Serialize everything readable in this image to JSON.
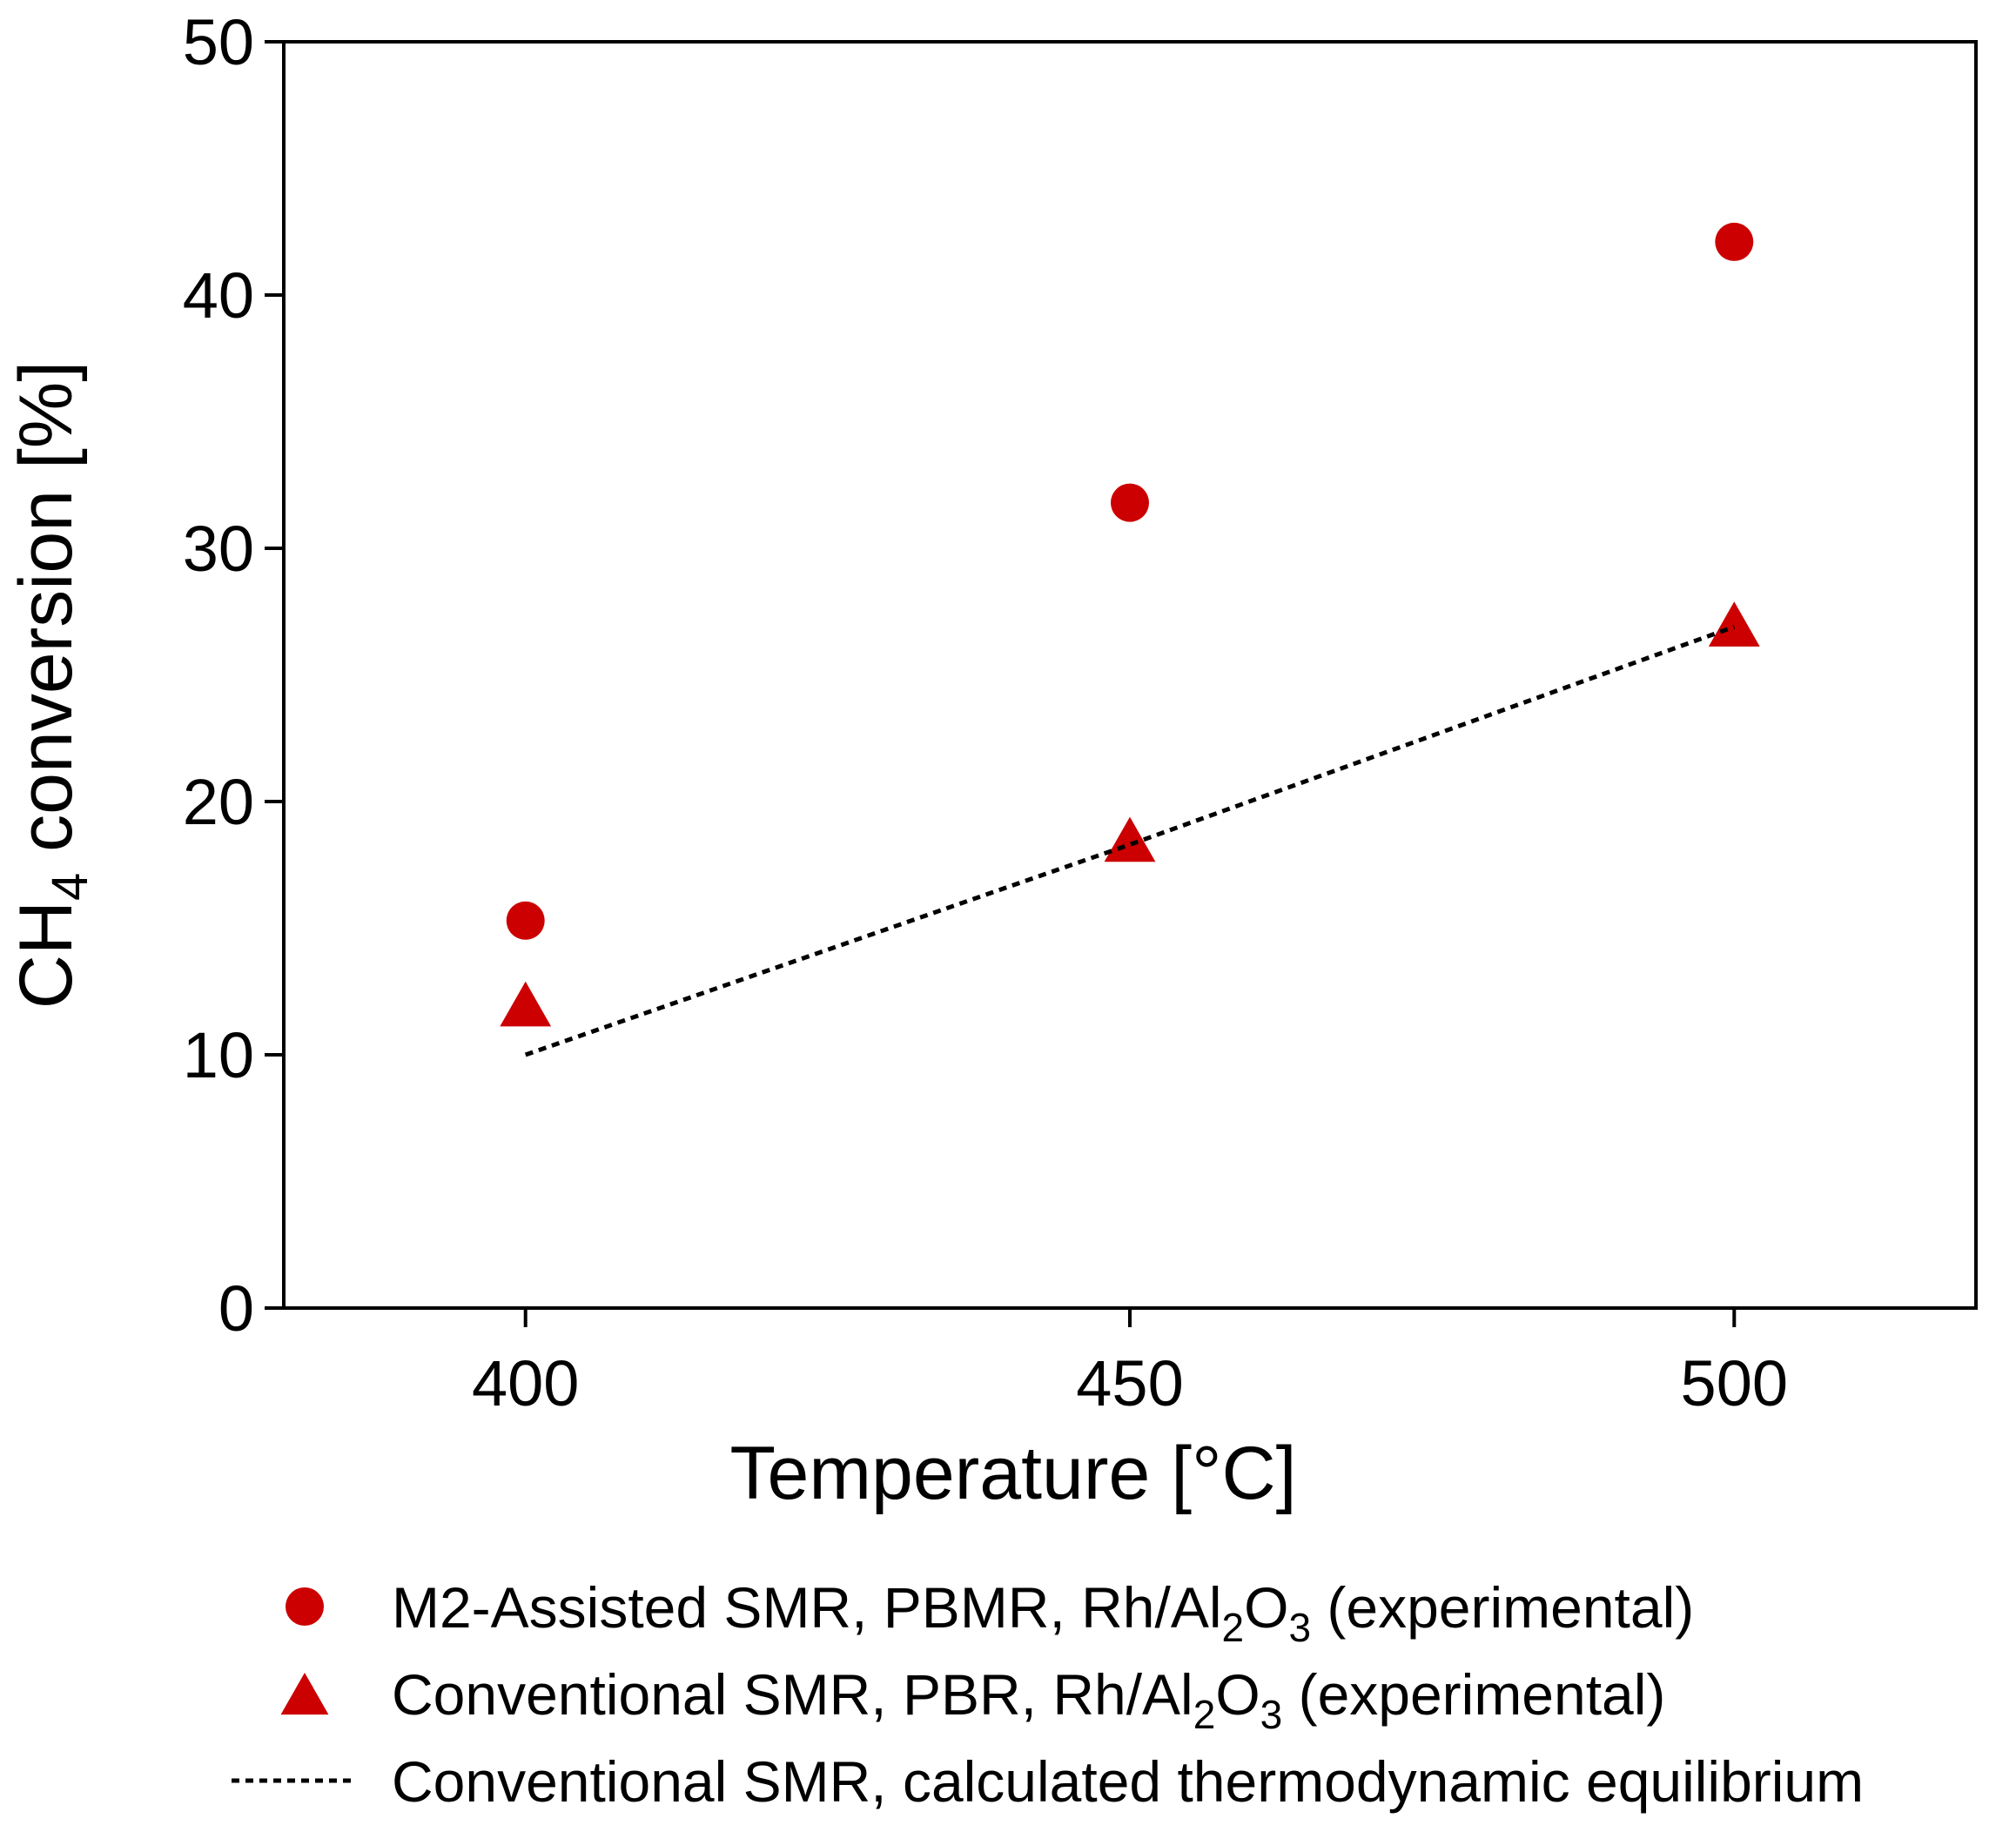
{
  "chart_data": {
    "type": "scatter",
    "title": "",
    "xlabel": "Temperature [°C]",
    "ylabel": {
      "prefix": "CH",
      "sub": "4",
      "suffix": " conversion [%]"
    },
    "xlim": [
      380,
      520
    ],
    "ylim": [
      0,
      50
    ],
    "xticks": [
      400,
      450,
      500
    ],
    "yticks": [
      0,
      10,
      20,
      30,
      40,
      50
    ],
    "grid": false,
    "legend_position": "bottom",
    "colors": {
      "marker": "#cc0000",
      "line": "#000000",
      "axis": "#000000"
    },
    "series": [
      {
        "name": "M2-Assisted SMR, PBMR, Rh/Al2O3 (experimental)",
        "legend_parts": [
          "M2-Assisted SMR, PBMR, Rh/Al",
          "2",
          "O",
          "3",
          " (experimental)"
        ],
        "marker": "circle",
        "x": [
          400,
          450,
          500
        ],
        "y": [
          15.3,
          31.8,
          42.1
        ]
      },
      {
        "name": "Conventional SMR, PBR, Rh/Al2O3 (experimental)",
        "legend_parts": [
          "Conventional SMR, PBR, Rh/Al",
          "2",
          "O",
          "3",
          " (experimental)"
        ],
        "marker": "triangle",
        "x": [
          400,
          450,
          500
        ],
        "y": [
          12.0,
          18.5,
          27.0
        ]
      },
      {
        "name": "Conventional SMR, calculated thermodynamic equilibrium",
        "legend_parts": [
          "Conventional SMR, calculated thermodynamic equilibrium"
        ],
        "marker": "dotted-line",
        "x": [
          400,
          450,
          500
        ],
        "y": [
          10.0,
          18.3,
          26.9
        ]
      }
    ]
  }
}
